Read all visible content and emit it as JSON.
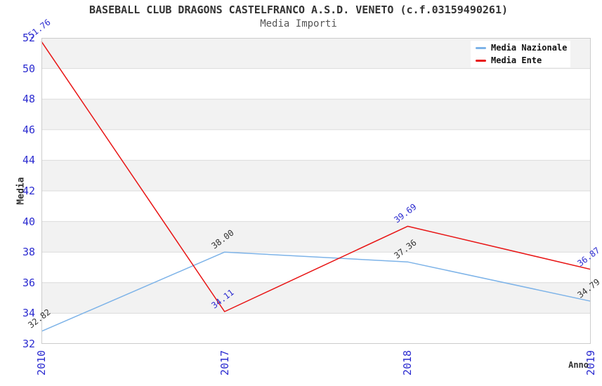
{
  "chart_data": {
    "type": "line",
    "title": "BASEBALL CLUB DRAGONS CASTELFRANCO A.S.D. VENETO (c.f.03159490261)",
    "subtitle": "Media Importi",
    "xlabel": "Anno",
    "ylabel": "Media",
    "categories": [
      "2010",
      "2017",
      "2018",
      "2019"
    ],
    "series": [
      {
        "name": "Media Nazionale",
        "color": "#7db3e8",
        "label_color": "#333333",
        "values": [
          32.82,
          38.0,
          37.36,
          34.79
        ]
      },
      {
        "name": "Media Ente",
        "color": "#e81414",
        "label_color": "#2b2bd0",
        "values": [
          51.76,
          34.11,
          39.69,
          36.87
        ]
      }
    ],
    "ylim": [
      32,
      52
    ],
    "ytick_step": 2,
    "grid": true,
    "legend_position": "top-right",
    "axis_tick_color": "#2b2bd0",
    "band_colors": [
      "#f2f2f2",
      "#ffffff"
    ],
    "gridline_color": "#dcdcdc",
    "plot_border_color": "#cccccc",
    "value_label_decimals": 2
  }
}
